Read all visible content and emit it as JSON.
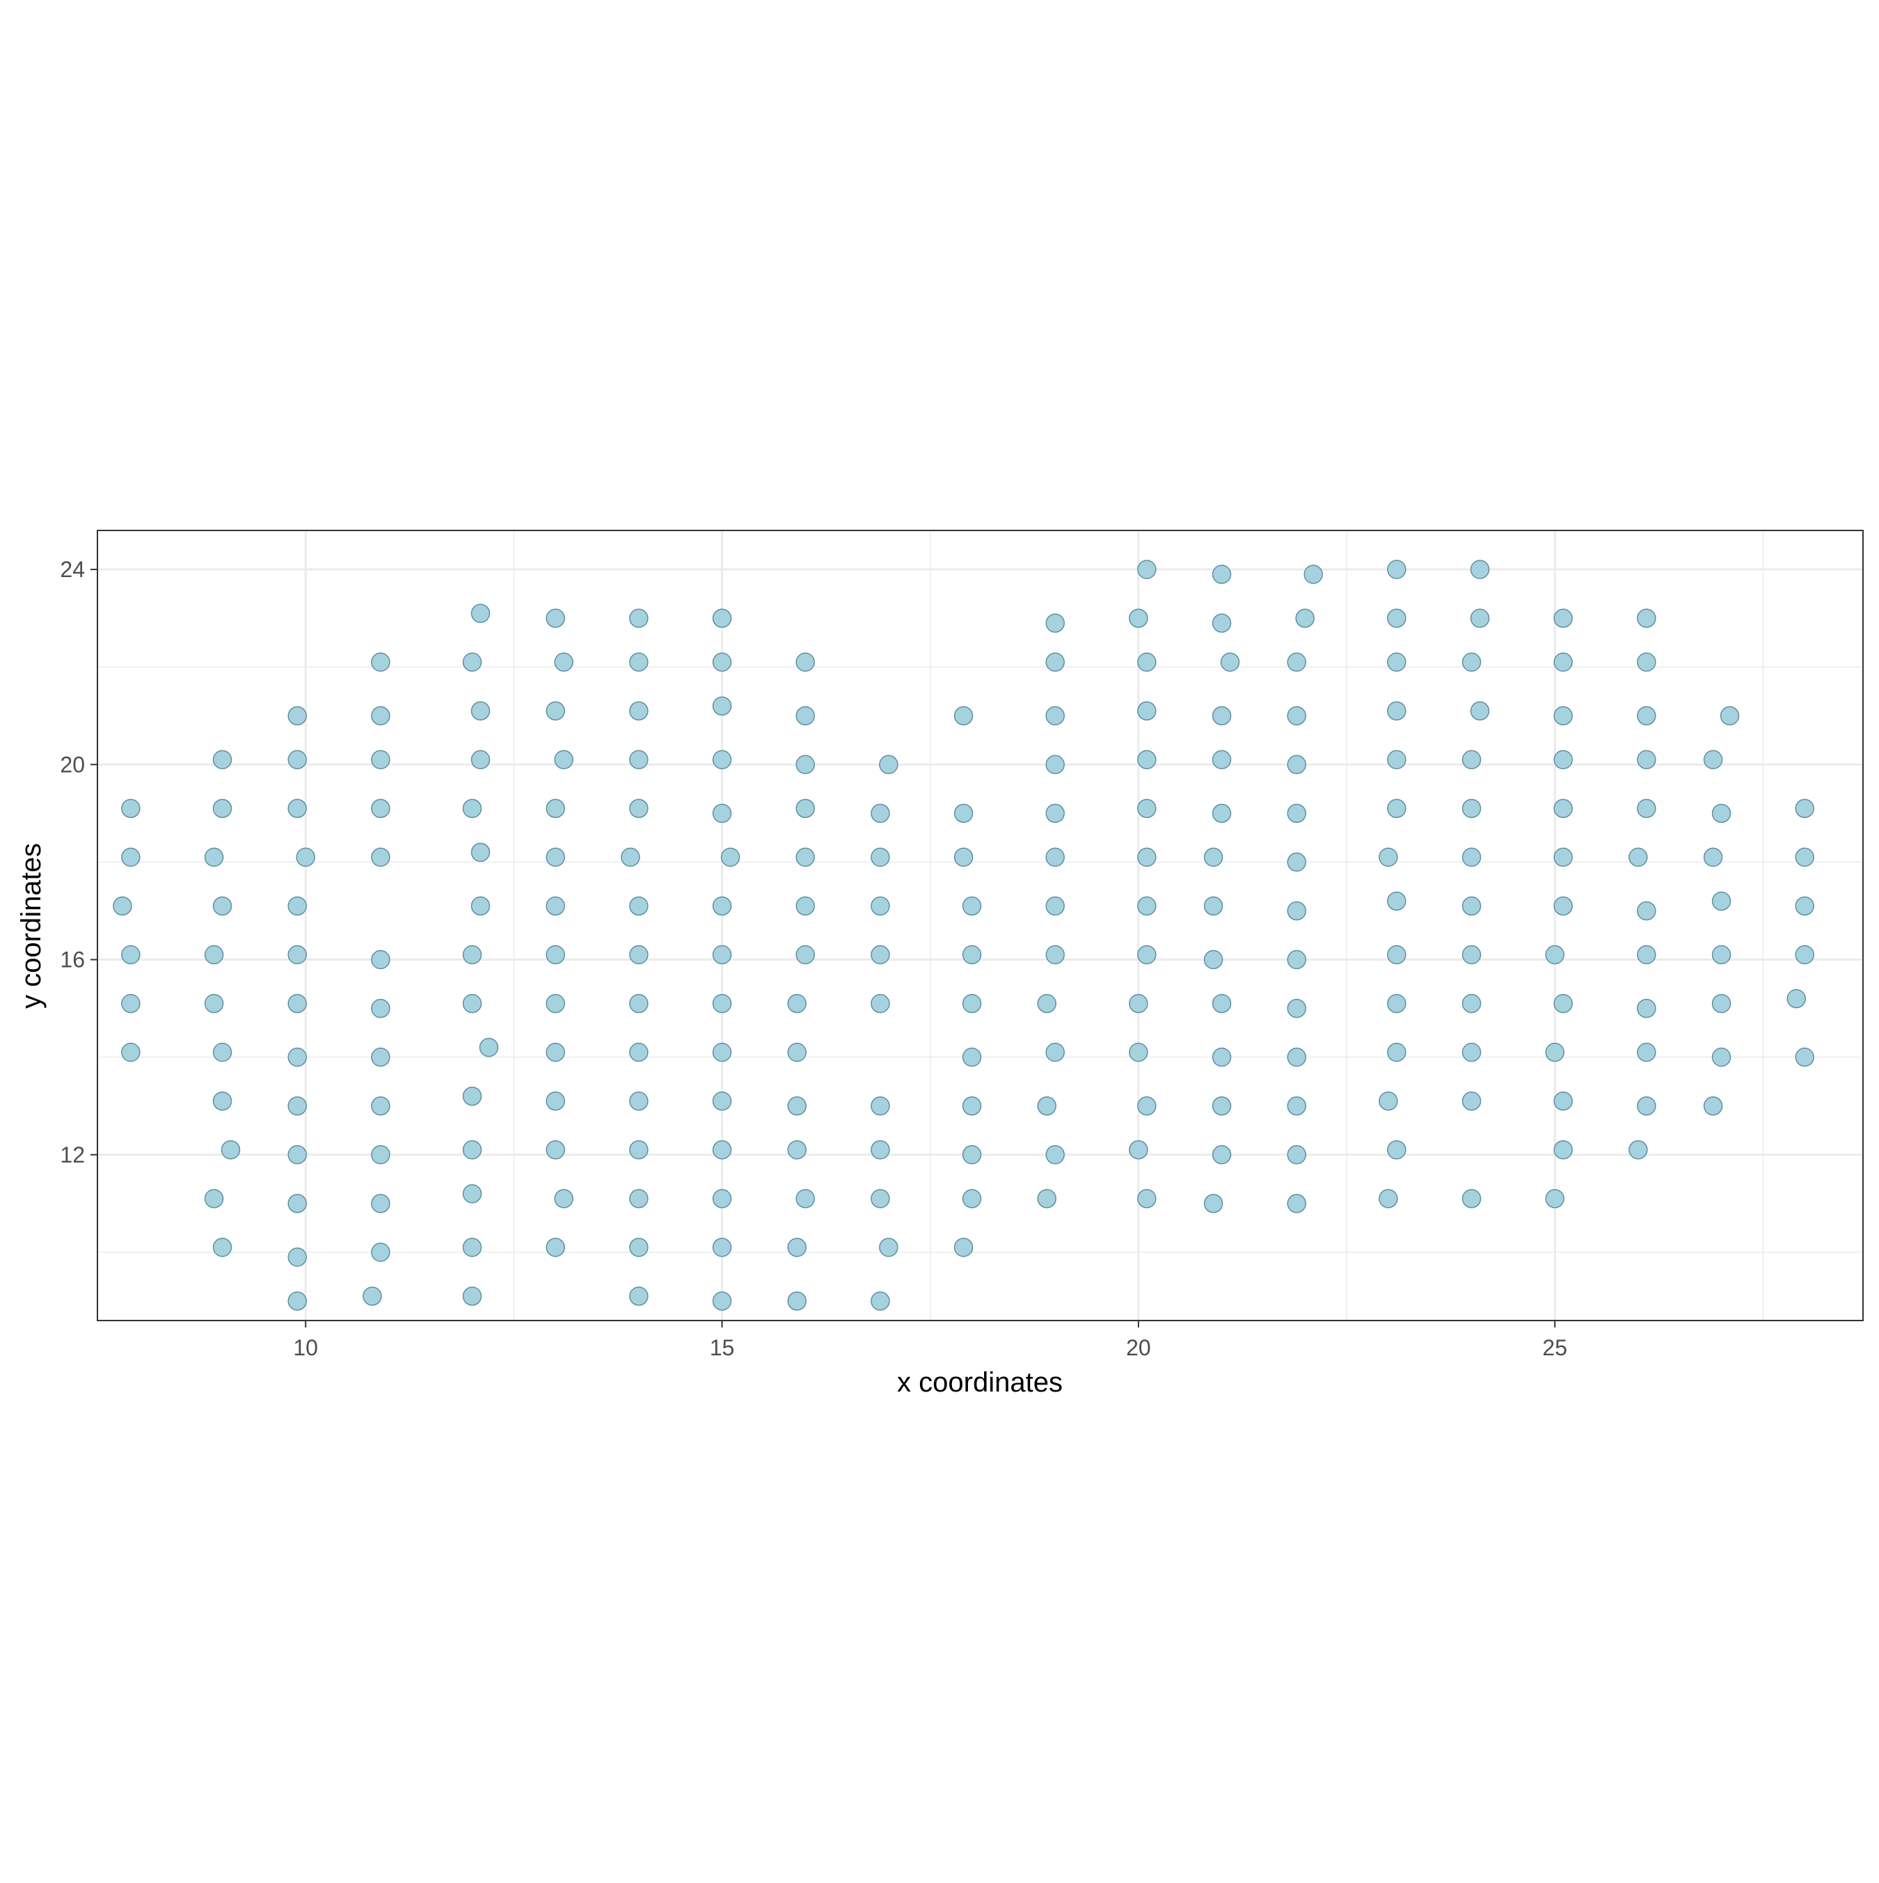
{
  "chart_data": {
    "type": "scatter",
    "title": "",
    "xlabel": "x coordinates",
    "ylabel": "y coordinates",
    "xlim": [
      7.5,
      28.7
    ],
    "ylim": [
      8.6,
      24.8
    ],
    "x_ticks": [
      10,
      15,
      20,
      25
    ],
    "x_tick_labels": [
      "10",
      "15",
      "20",
      "25"
    ],
    "y_ticks": [
      12,
      16,
      20,
      24
    ],
    "y_tick_labels": [
      "12",
      "16",
      "20",
      "24"
    ],
    "grid": true,
    "legend": "none",
    "point_fill": "#a6d2e0",
    "point_stroke": "#5e8fa0",
    "grid_color": "#ebebeb",
    "panel_border_color": "#333333",
    "points": [
      {
        "x": 7.9,
        "y": 19.1
      },
      {
        "x": 7.9,
        "y": 18.1
      },
      {
        "x": 7.8,
        "y": 17.1
      },
      {
        "x": 7.9,
        "y": 16.1
      },
      {
        "x": 7.9,
        "y": 15.1
      },
      {
        "x": 7.9,
        "y": 14.1
      },
      {
        "x": 9.0,
        "y": 20.1
      },
      {
        "x": 9.0,
        "y": 19.1
      },
      {
        "x": 8.9,
        "y": 18.1
      },
      {
        "x": 9.0,
        "y": 17.1
      },
      {
        "x": 8.9,
        "y": 16.1
      },
      {
        "x": 8.9,
        "y": 15.1
      },
      {
        "x": 9.0,
        "y": 14.1
      },
      {
        "x": 9.0,
        "y": 13.1
      },
      {
        "x": 9.1,
        "y": 12.1
      },
      {
        "x": 8.9,
        "y": 11.1
      },
      {
        "x": 9.0,
        "y": 10.1
      },
      {
        "x": 9.9,
        "y": 21.0
      },
      {
        "x": 9.9,
        "y": 20.1
      },
      {
        "x": 9.9,
        "y": 19.1
      },
      {
        "x": 10.0,
        "y": 18.1
      },
      {
        "x": 9.9,
        "y": 17.1
      },
      {
        "x": 9.9,
        "y": 16.1
      },
      {
        "x": 9.9,
        "y": 15.1
      },
      {
        "x": 9.9,
        "y": 14.0
      },
      {
        "x": 9.9,
        "y": 13.0
      },
      {
        "x": 9.9,
        "y": 12.0
      },
      {
        "x": 9.9,
        "y": 11.0
      },
      {
        "x": 9.9,
        "y": 9.9
      },
      {
        "x": 9.9,
        "y": 9.0
      },
      {
        "x": 10.9,
        "y": 22.1
      },
      {
        "x": 10.9,
        "y": 21.0
      },
      {
        "x": 10.9,
        "y": 20.1
      },
      {
        "x": 10.9,
        "y": 19.1
      },
      {
        "x": 10.9,
        "y": 18.1
      },
      {
        "x": 10.9,
        "y": 16.0
      },
      {
        "x": 10.9,
        "y": 15.0
      },
      {
        "x": 10.9,
        "y": 14.0
      },
      {
        "x": 10.9,
        "y": 13.0
      },
      {
        "x": 10.9,
        "y": 12.0
      },
      {
        "x": 10.9,
        "y": 11.0
      },
      {
        "x": 10.9,
        "y": 10.0
      },
      {
        "x": 10.8,
        "y": 9.1
      },
      {
        "x": 12.1,
        "y": 23.1
      },
      {
        "x": 12.0,
        "y": 22.1
      },
      {
        "x": 12.1,
        "y": 21.1
      },
      {
        "x": 12.1,
        "y": 20.1
      },
      {
        "x": 12.0,
        "y": 19.1
      },
      {
        "x": 12.1,
        "y": 18.2
      },
      {
        "x": 12.1,
        "y": 17.1
      },
      {
        "x": 12.0,
        "y": 16.1
      },
      {
        "x": 12.0,
        "y": 15.1
      },
      {
        "x": 12.2,
        "y": 14.2
      },
      {
        "x": 12.0,
        "y": 13.2
      },
      {
        "x": 12.0,
        "y": 12.1
      },
      {
        "x": 12.0,
        "y": 11.2
      },
      {
        "x": 12.0,
        "y": 10.1
      },
      {
        "x": 12.0,
        "y": 9.1
      },
      {
        "x": 13.0,
        "y": 23.0
      },
      {
        "x": 13.1,
        "y": 22.1
      },
      {
        "x": 13.0,
        "y": 21.1
      },
      {
        "x": 13.1,
        "y": 20.1
      },
      {
        "x": 13.0,
        "y": 19.1
      },
      {
        "x": 13.0,
        "y": 18.1
      },
      {
        "x": 13.0,
        "y": 17.1
      },
      {
        "x": 13.0,
        "y": 16.1
      },
      {
        "x": 13.0,
        "y": 15.1
      },
      {
        "x": 13.0,
        "y": 14.1
      },
      {
        "x": 13.0,
        "y": 13.1
      },
      {
        "x": 13.0,
        "y": 12.1
      },
      {
        "x": 13.1,
        "y": 11.1
      },
      {
        "x": 13.0,
        "y": 10.1
      },
      {
        "x": 14.0,
        "y": 23.0
      },
      {
        "x": 14.0,
        "y": 22.1
      },
      {
        "x": 14.0,
        "y": 21.1
      },
      {
        "x": 14.0,
        "y": 20.1
      },
      {
        "x": 14.0,
        "y": 19.1
      },
      {
        "x": 13.9,
        "y": 18.1
      },
      {
        "x": 14.0,
        "y": 17.1
      },
      {
        "x": 14.0,
        "y": 16.1
      },
      {
        "x": 14.0,
        "y": 15.1
      },
      {
        "x": 14.0,
        "y": 14.1
      },
      {
        "x": 14.0,
        "y": 13.1
      },
      {
        "x": 14.0,
        "y": 12.1
      },
      {
        "x": 14.0,
        "y": 11.1
      },
      {
        "x": 14.0,
        "y": 10.1
      },
      {
        "x": 14.0,
        "y": 9.1
      },
      {
        "x": 15.0,
        "y": 23.0
      },
      {
        "x": 15.0,
        "y": 22.1
      },
      {
        "x": 15.0,
        "y": 21.2
      },
      {
        "x": 15.0,
        "y": 20.1
      },
      {
        "x": 15.0,
        "y": 19.0
      },
      {
        "x": 15.1,
        "y": 18.1
      },
      {
        "x": 15.0,
        "y": 17.1
      },
      {
        "x": 15.0,
        "y": 16.1
      },
      {
        "x": 15.0,
        "y": 15.1
      },
      {
        "x": 15.0,
        "y": 14.1
      },
      {
        "x": 15.0,
        "y": 13.1
      },
      {
        "x": 15.0,
        "y": 12.1
      },
      {
        "x": 15.0,
        "y": 11.1
      },
      {
        "x": 15.0,
        "y": 10.1
      },
      {
        "x": 15.0,
        "y": 9.0
      },
      {
        "x": 16.0,
        "y": 22.1
      },
      {
        "x": 16.0,
        "y": 21.0
      },
      {
        "x": 16.0,
        "y": 20.0
      },
      {
        "x": 16.0,
        "y": 19.1
      },
      {
        "x": 16.0,
        "y": 18.1
      },
      {
        "x": 16.0,
        "y": 17.1
      },
      {
        "x": 16.0,
        "y": 16.1
      },
      {
        "x": 15.9,
        "y": 15.1
      },
      {
        "x": 15.9,
        "y": 14.1
      },
      {
        "x": 15.9,
        "y": 13.0
      },
      {
        "x": 15.9,
        "y": 12.1
      },
      {
        "x": 16.0,
        "y": 11.1
      },
      {
        "x": 15.9,
        "y": 10.1
      },
      {
        "x": 15.9,
        "y": 9.0
      },
      {
        "x": 17.0,
        "y": 20.0
      },
      {
        "x": 16.9,
        "y": 19.0
      },
      {
        "x": 16.9,
        "y": 18.1
      },
      {
        "x": 16.9,
        "y": 17.1
      },
      {
        "x": 16.9,
        "y": 16.1
      },
      {
        "x": 16.9,
        "y": 15.1
      },
      {
        "x": 16.9,
        "y": 13.0
      },
      {
        "x": 16.9,
        "y": 12.1
      },
      {
        "x": 16.9,
        "y": 11.1
      },
      {
        "x": 17.0,
        "y": 10.1
      },
      {
        "x": 16.9,
        "y": 9.0
      },
      {
        "x": 17.9,
        "y": 21.0
      },
      {
        "x": 17.9,
        "y": 19.0
      },
      {
        "x": 17.9,
        "y": 18.1
      },
      {
        "x": 18.0,
        "y": 17.1
      },
      {
        "x": 18.0,
        "y": 16.1
      },
      {
        "x": 18.0,
        "y": 15.1
      },
      {
        "x": 18.0,
        "y": 14.0
      },
      {
        "x": 18.0,
        "y": 13.0
      },
      {
        "x": 18.0,
        "y": 12.0
      },
      {
        "x": 18.0,
        "y": 11.1
      },
      {
        "x": 17.9,
        "y": 10.1
      },
      {
        "x": 19.0,
        "y": 22.9
      },
      {
        "x": 19.0,
        "y": 22.1
      },
      {
        "x": 19.0,
        "y": 21.0
      },
      {
        "x": 19.0,
        "y": 20.0
      },
      {
        "x": 19.0,
        "y": 19.0
      },
      {
        "x": 19.0,
        "y": 18.1
      },
      {
        "x": 19.0,
        "y": 17.1
      },
      {
        "x": 19.0,
        "y": 16.1
      },
      {
        "x": 18.9,
        "y": 15.1
      },
      {
        "x": 19.0,
        "y": 14.1
      },
      {
        "x": 18.9,
        "y": 13.0
      },
      {
        "x": 19.0,
        "y": 12.0
      },
      {
        "x": 18.9,
        "y": 11.1
      },
      {
        "x": 20.1,
        "y": 24.0
      },
      {
        "x": 20.0,
        "y": 23.0
      },
      {
        "x": 20.1,
        "y": 22.1
      },
      {
        "x": 20.1,
        "y": 21.1
      },
      {
        "x": 20.1,
        "y": 20.1
      },
      {
        "x": 20.1,
        "y": 19.1
      },
      {
        "x": 20.1,
        "y": 18.1
      },
      {
        "x": 20.1,
        "y": 17.1
      },
      {
        "x": 20.1,
        "y": 16.1
      },
      {
        "x": 20.0,
        "y": 15.1
      },
      {
        "x": 20.0,
        "y": 14.1
      },
      {
        "x": 20.1,
        "y": 13.0
      },
      {
        "x": 20.0,
        "y": 12.1
      },
      {
        "x": 20.1,
        "y": 11.1
      },
      {
        "x": 21.0,
        "y": 23.9
      },
      {
        "x": 21.0,
        "y": 22.9
      },
      {
        "x": 21.1,
        "y": 22.1
      },
      {
        "x": 21.0,
        "y": 21.0
      },
      {
        "x": 21.0,
        "y": 20.1
      },
      {
        "x": 21.0,
        "y": 19.0
      },
      {
        "x": 20.9,
        "y": 18.1
      },
      {
        "x": 20.9,
        "y": 17.1
      },
      {
        "x": 20.9,
        "y": 16.0
      },
      {
        "x": 21.0,
        "y": 15.1
      },
      {
        "x": 21.0,
        "y": 14.0
      },
      {
        "x": 21.0,
        "y": 13.0
      },
      {
        "x": 21.0,
        "y": 12.0
      },
      {
        "x": 20.9,
        "y": 11.0
      },
      {
        "x": 22.1,
        "y": 23.9
      },
      {
        "x": 22.0,
        "y": 23.0
      },
      {
        "x": 21.9,
        "y": 22.1
      },
      {
        "x": 21.9,
        "y": 21.0
      },
      {
        "x": 21.9,
        "y": 20.0
      },
      {
        "x": 21.9,
        "y": 19.0
      },
      {
        "x": 21.9,
        "y": 18.0
      },
      {
        "x": 21.9,
        "y": 17.0
      },
      {
        "x": 21.9,
        "y": 16.0
      },
      {
        "x": 21.9,
        "y": 15.0
      },
      {
        "x": 21.9,
        "y": 14.0
      },
      {
        "x": 21.9,
        "y": 13.0
      },
      {
        "x": 21.9,
        "y": 12.0
      },
      {
        "x": 21.9,
        "y": 11.0
      },
      {
        "x": 23.1,
        "y": 24.0
      },
      {
        "x": 23.1,
        "y": 23.0
      },
      {
        "x": 23.1,
        "y": 22.1
      },
      {
        "x": 23.1,
        "y": 21.1
      },
      {
        "x": 23.1,
        "y": 20.1
      },
      {
        "x": 23.1,
        "y": 19.1
      },
      {
        "x": 23.0,
        "y": 18.1
      },
      {
        "x": 23.1,
        "y": 17.2
      },
      {
        "x": 23.1,
        "y": 16.1
      },
      {
        "x": 23.1,
        "y": 15.1
      },
      {
        "x": 23.1,
        "y": 14.1
      },
      {
        "x": 23.0,
        "y": 13.1
      },
      {
        "x": 23.1,
        "y": 12.1
      },
      {
        "x": 23.0,
        "y": 11.1
      },
      {
        "x": 24.1,
        "y": 24.0
      },
      {
        "x": 24.1,
        "y": 23.0
      },
      {
        "x": 24.0,
        "y": 22.1
      },
      {
        "x": 24.1,
        "y": 21.1
      },
      {
        "x": 24.0,
        "y": 20.1
      },
      {
        "x": 24.0,
        "y": 19.1
      },
      {
        "x": 24.0,
        "y": 18.1
      },
      {
        "x": 24.0,
        "y": 17.1
      },
      {
        "x": 24.0,
        "y": 16.1
      },
      {
        "x": 24.0,
        "y": 15.1
      },
      {
        "x": 24.0,
        "y": 14.1
      },
      {
        "x": 24.0,
        "y": 13.1
      },
      {
        "x": 24.0,
        "y": 11.1
      },
      {
        "x": 25.1,
        "y": 23.0
      },
      {
        "x": 25.1,
        "y": 22.1
      },
      {
        "x": 25.1,
        "y": 21.0
      },
      {
        "x": 25.1,
        "y": 20.1
      },
      {
        "x": 25.1,
        "y": 19.1
      },
      {
        "x": 25.1,
        "y": 18.1
      },
      {
        "x": 25.1,
        "y": 17.1
      },
      {
        "x": 25.0,
        "y": 16.1
      },
      {
        "x": 25.1,
        "y": 15.1
      },
      {
        "x": 25.0,
        "y": 14.1
      },
      {
        "x": 25.1,
        "y": 13.1
      },
      {
        "x": 25.1,
        "y": 12.1
      },
      {
        "x": 25.0,
        "y": 11.1
      },
      {
        "x": 26.1,
        "y": 23.0
      },
      {
        "x": 26.1,
        "y": 22.1
      },
      {
        "x": 26.1,
        "y": 21.0
      },
      {
        "x": 26.1,
        "y": 20.1
      },
      {
        "x": 26.1,
        "y": 19.1
      },
      {
        "x": 26.0,
        "y": 18.1
      },
      {
        "x": 26.1,
        "y": 17.0
      },
      {
        "x": 26.1,
        "y": 16.1
      },
      {
        "x": 26.1,
        "y": 15.0
      },
      {
        "x": 26.1,
        "y": 14.1
      },
      {
        "x": 26.1,
        "y": 13.0
      },
      {
        "x": 26.0,
        "y": 12.1
      },
      {
        "x": 27.1,
        "y": 21.0
      },
      {
        "x": 26.9,
        "y": 20.1
      },
      {
        "x": 27.0,
        "y": 19.0
      },
      {
        "x": 26.9,
        "y": 18.1
      },
      {
        "x": 27.0,
        "y": 17.2
      },
      {
        "x": 27.0,
        "y": 16.1
      },
      {
        "x": 27.0,
        "y": 15.1
      },
      {
        "x": 27.0,
        "y": 14.0
      },
      {
        "x": 26.9,
        "y": 13.0
      },
      {
        "x": 28.0,
        "y": 19.1
      },
      {
        "x": 28.0,
        "y": 18.1
      },
      {
        "x": 28.0,
        "y": 17.1
      },
      {
        "x": 28.0,
        "y": 16.1
      },
      {
        "x": 27.9,
        "y": 15.2
      },
      {
        "x": 28.0,
        "y": 14.0
      }
    ]
  }
}
